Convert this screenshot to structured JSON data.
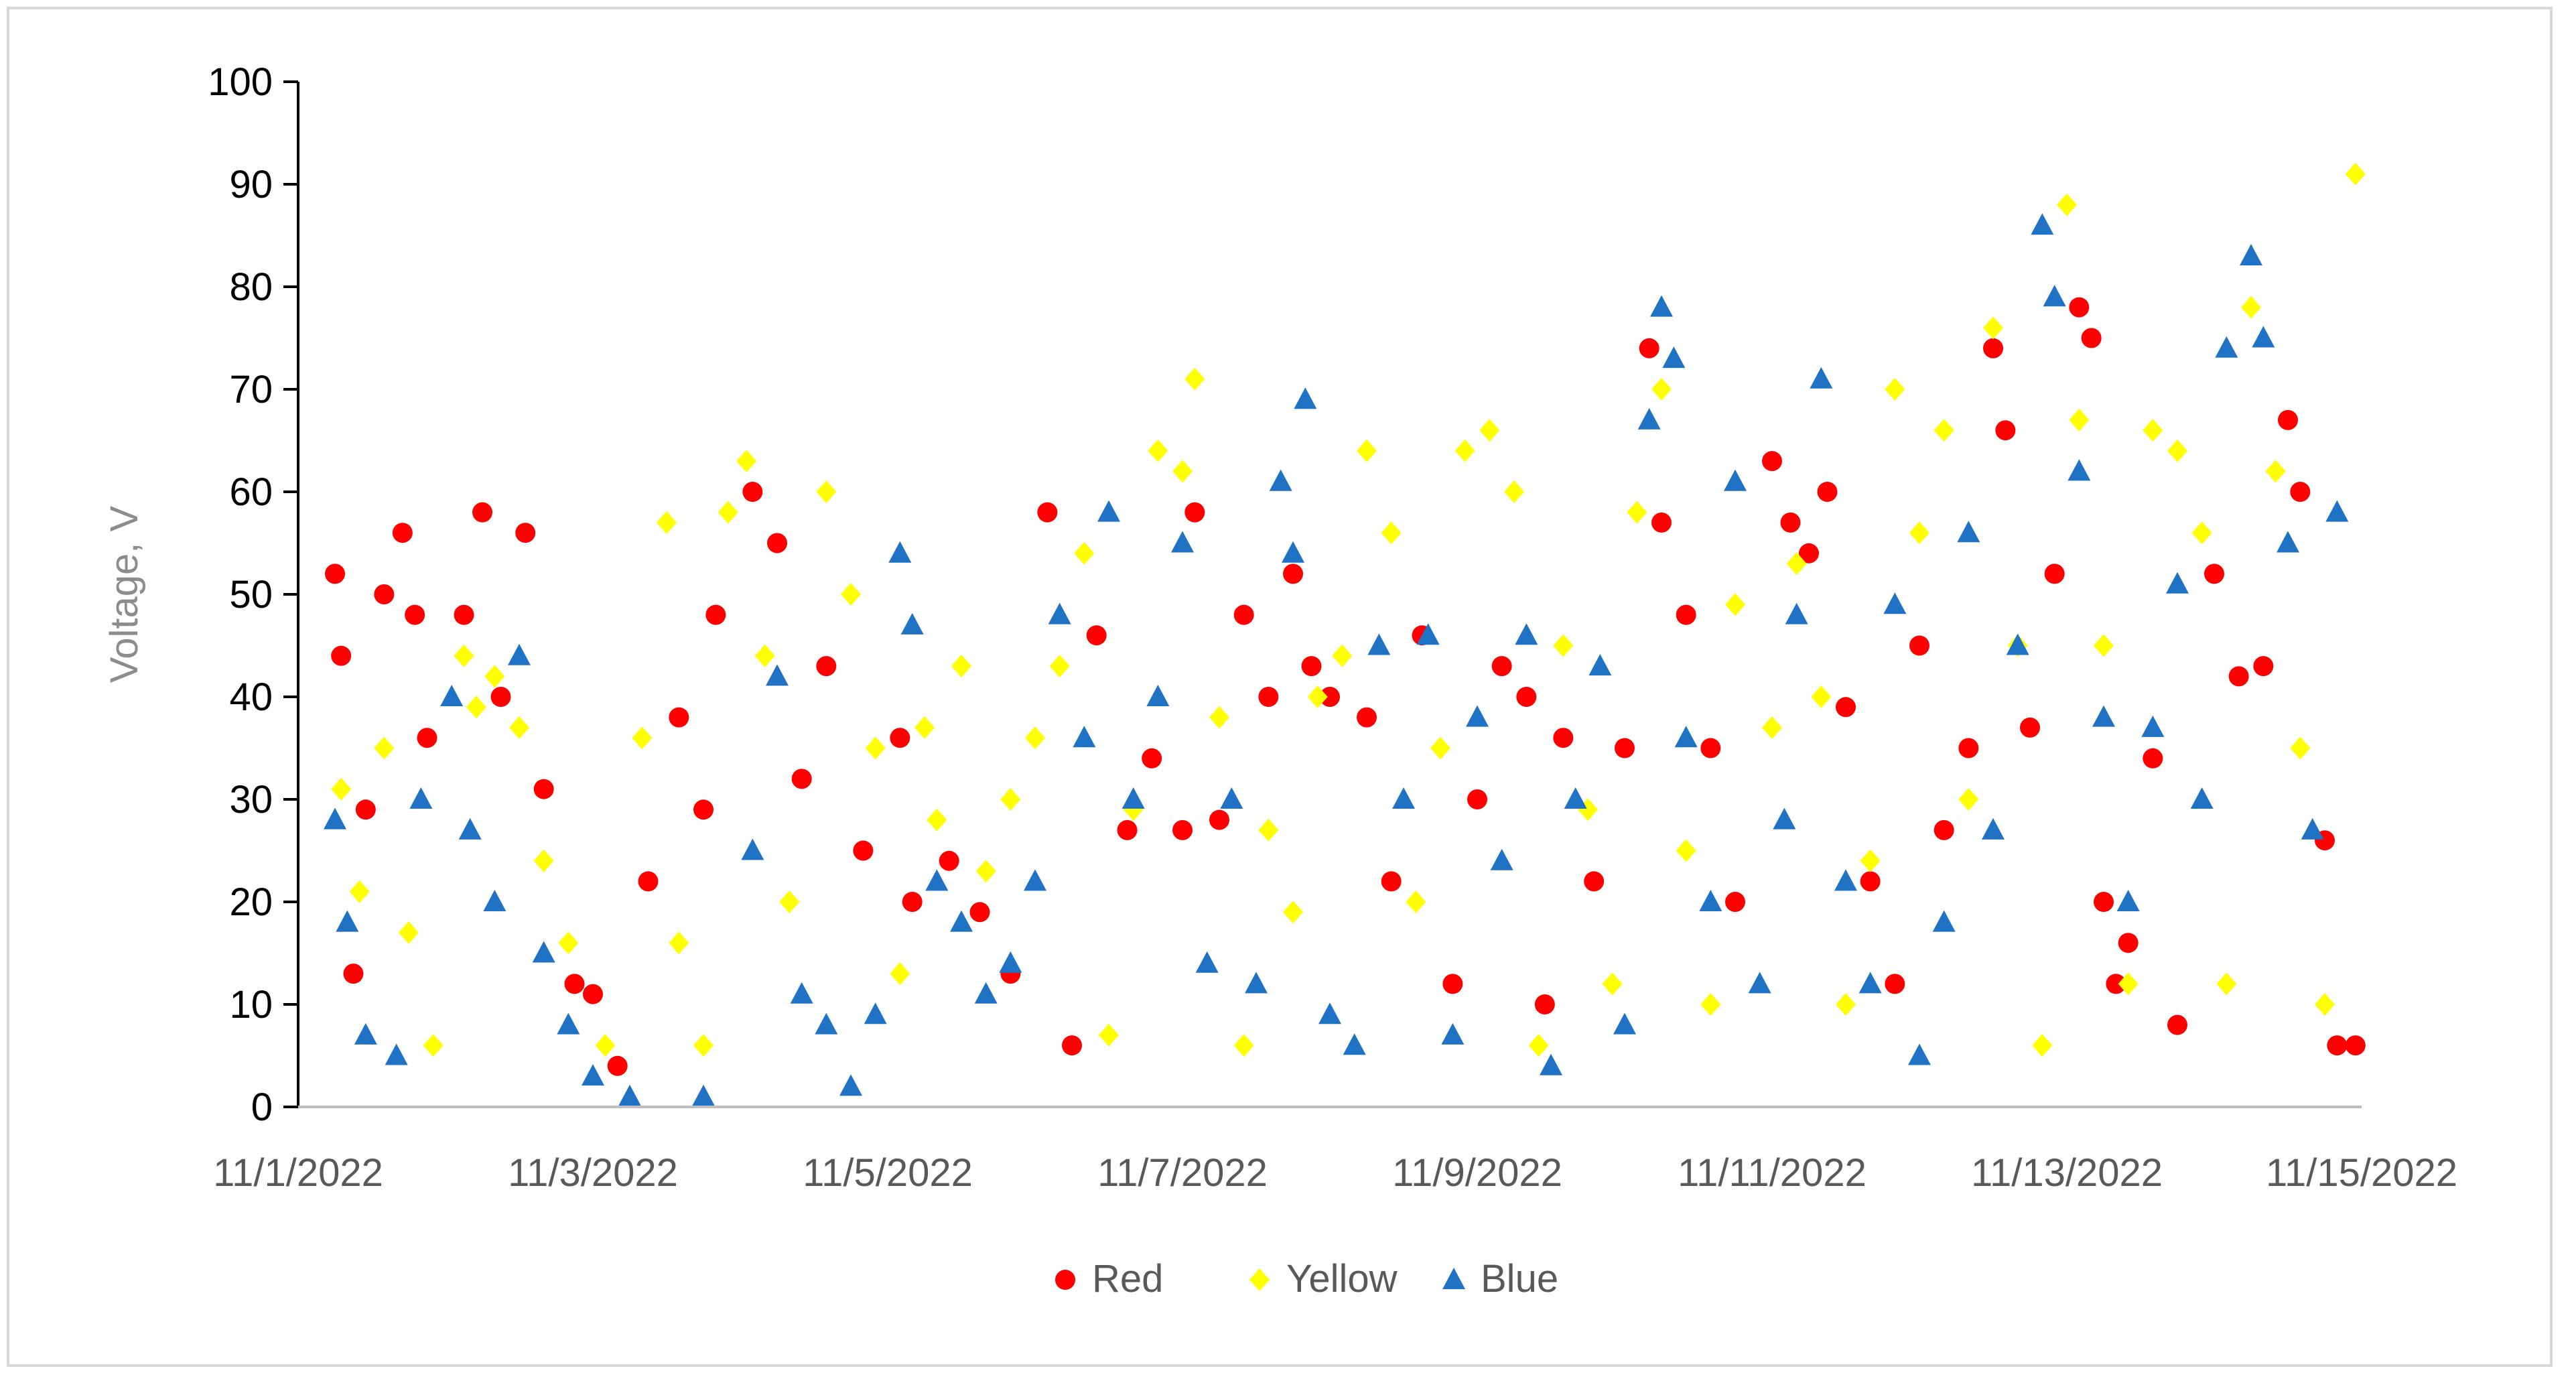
{
  "chart_data": {
    "type": "scatter",
    "title": "",
    "xlabel": "",
    "ylabel": "Voltage, V",
    "ylim": [
      0,
      100
    ],
    "y_ticks": [
      "0",
      "10",
      "20",
      "30",
      "40",
      "50",
      "60",
      "70",
      "80",
      "90",
      "100"
    ],
    "xlim": [
      "11/1/2022",
      "11/15/2022"
    ],
    "x_ticks": [
      "11/1/2022",
      "11/3/2022",
      "11/5/2022",
      "11/7/2022",
      "11/9/2022",
      "11/11/2022",
      "11/13/2022",
      "11/15/2022"
    ],
    "grid": false,
    "legend_position": "bottom",
    "series": [
      {
        "name": "Red",
        "marker": "circle",
        "color": "#ff0000",
        "points": [
          [
            "11/1/2022 06:00",
            52
          ],
          [
            "11/1/2022 07:00",
            44
          ],
          [
            "11/1/2022 09:00",
            13
          ],
          [
            "11/1/2022 11:00",
            29
          ],
          [
            "11/1/2022 14:00",
            50
          ],
          [
            "11/1/2022 17:00",
            56
          ],
          [
            "11/1/2022 19:00",
            48
          ],
          [
            "11/1/2022 21:00",
            36
          ],
          [
            "11/2/2022 03:00",
            48
          ],
          [
            "11/2/2022 06:00",
            58
          ],
          [
            "11/2/2022 09:00",
            40
          ],
          [
            "11/2/2022 13:00",
            56
          ],
          [
            "11/2/2022 16:00",
            31
          ],
          [
            "11/2/2022 21:00",
            12
          ],
          [
            "11/3/2022 00:00",
            11
          ],
          [
            "11/3/2022 04:00",
            4
          ],
          [
            "11/3/2022 09:00",
            22
          ],
          [
            "11/3/2022 14:00",
            38
          ],
          [
            "11/3/2022 18:00",
            29
          ],
          [
            "11/3/2022 20:00",
            48
          ],
          [
            "11/4/2022 02:00",
            60
          ],
          [
            "11/4/2022 06:00",
            55
          ],
          [
            "11/4/2022 10:00",
            32
          ],
          [
            "11/4/2022 14:00",
            43
          ],
          [
            "11/4/2022 20:00",
            25
          ],
          [
            "11/5/2022 02:00",
            36
          ],
          [
            "11/5/2022 04:00",
            20
          ],
          [
            "11/5/2022 10:00",
            24
          ],
          [
            "11/5/2022 15:00",
            19
          ],
          [
            "11/5/2022 20:00",
            13
          ],
          [
            "11/6/2022 02:00",
            58
          ],
          [
            "11/6/2022 06:00",
            6
          ],
          [
            "11/6/2022 10:00",
            46
          ],
          [
            "11/6/2022 15:00",
            27
          ],
          [
            "11/6/2022 19:00",
            34
          ],
          [
            "11/7/2022 00:00",
            27
          ],
          [
            "11/7/2022 02:00",
            58
          ],
          [
            "11/7/2022 06:00",
            28
          ],
          [
            "11/7/2022 10:00",
            48
          ],
          [
            "11/7/2022 14:00",
            40
          ],
          [
            "11/7/2022 18:00",
            52
          ],
          [
            "11/7/2022 21:00",
            43
          ],
          [
            "11/8/2022 00:00",
            40
          ],
          [
            "11/8/2022 06:00",
            38
          ],
          [
            "11/8/2022 10:00",
            22
          ],
          [
            "11/8/2022 15:00",
            46
          ],
          [
            "11/8/2022 20:00",
            12
          ],
          [
            "11/9/2022 00:00",
            30
          ],
          [
            "11/9/2022 04:00",
            43
          ],
          [
            "11/9/2022 08:00",
            40
          ],
          [
            "11/9/2022 11:00",
            10
          ],
          [
            "11/9/2022 14:00",
            36
          ],
          [
            "11/9/2022 19:00",
            22
          ],
          [
            "11/10/2022 00:00",
            35
          ],
          [
            "11/10/2022 04:00",
            74
          ],
          [
            "11/10/2022 06:00",
            57
          ],
          [
            "11/10/2022 10:00",
            48
          ],
          [
            "11/10/2022 14:00",
            35
          ],
          [
            "11/10/2022 18:00",
            20
          ],
          [
            "11/11/2022 00:00",
            63
          ],
          [
            "11/11/2022 03:00",
            57
          ],
          [
            "11/11/2022 06:00",
            54
          ],
          [
            "11/11/2022 09:00",
            60
          ],
          [
            "11/11/2022 12:00",
            39
          ],
          [
            "11/11/2022 16:00",
            22
          ],
          [
            "11/11/2022 20:00",
            12
          ],
          [
            "11/12/2022 00:00",
            45
          ],
          [
            "11/12/2022 04:00",
            27
          ],
          [
            "11/12/2022 08:00",
            35
          ],
          [
            "11/12/2022 12:00",
            74
          ],
          [
            "11/12/2022 14:00",
            66
          ],
          [
            "11/12/2022 18:00",
            37
          ],
          [
            "11/12/2022 22:00",
            52
          ],
          [
            "11/13/2022 02:00",
            78
          ],
          [
            "11/13/2022 04:00",
            75
          ],
          [
            "11/13/2022 06:00",
            20
          ],
          [
            "11/13/2022 08:00",
            12
          ],
          [
            "11/13/2022 10:00",
            16
          ],
          [
            "11/13/2022 14:00",
            34
          ],
          [
            "11/13/2022 18:00",
            8
          ],
          [
            "11/14/2022 00:00",
            52
          ],
          [
            "11/14/2022 04:00",
            42
          ],
          [
            "11/14/2022 08:00",
            43
          ],
          [
            "11/14/2022 12:00",
            67
          ],
          [
            "11/14/2022 14:00",
            60
          ],
          [
            "11/14/2022 18:00",
            26
          ],
          [
            "11/14/2022 20:00",
            6
          ],
          [
            "11/14/2022 23:00",
            6
          ]
        ]
      },
      {
        "name": "Yellow",
        "marker": "diamond",
        "color": "#ffff00",
        "points": [
          [
            "11/1/2022 07:00",
            31
          ],
          [
            "11/1/2022 10:00",
            21
          ],
          [
            "11/1/2022 14:00",
            35
          ],
          [
            "11/1/2022 18:00",
            17
          ],
          [
            "11/1/2022 22:00",
            6
          ],
          [
            "11/2/2022 03:00",
            44
          ],
          [
            "11/2/2022 05:00",
            39
          ],
          [
            "11/2/2022 08:00",
            42
          ],
          [
            "11/2/2022 12:00",
            37
          ],
          [
            "11/2/2022 16:00",
            24
          ],
          [
            "11/2/2022 20:00",
            16
          ],
          [
            "11/3/2022 02:00",
            6
          ],
          [
            "11/3/2022 08:00",
            36
          ],
          [
            "11/3/2022 12:00",
            57
          ],
          [
            "11/3/2022 14:00",
            16
          ],
          [
            "11/3/2022 18:00",
            6
          ],
          [
            "11/3/2022 22:00",
            58
          ],
          [
            "11/4/2022 01:00",
            63
          ],
          [
            "11/4/2022 04:00",
            44
          ],
          [
            "11/4/2022 08:00",
            20
          ],
          [
            "11/4/2022 14:00",
            60
          ],
          [
            "11/4/2022 18:00",
            50
          ],
          [
            "11/4/2022 22:00",
            35
          ],
          [
            "11/5/2022 02:00",
            13
          ],
          [
            "11/5/2022 06:00",
            37
          ],
          [
            "11/5/2022 08:00",
            28
          ],
          [
            "11/5/2022 12:00",
            43
          ],
          [
            "11/5/2022 16:00",
            23
          ],
          [
            "11/5/2022 20:00",
            30
          ],
          [
            "11/6/2022 00:00",
            36
          ],
          [
            "11/6/2022 04:00",
            43
          ],
          [
            "11/6/2022 08:00",
            54
          ],
          [
            "11/6/2022 12:00",
            7
          ],
          [
            "11/6/2022 16:00",
            29
          ],
          [
            "11/6/2022 20:00",
            64
          ],
          [
            "11/7/2022 00:00",
            62
          ],
          [
            "11/7/2022 02:00",
            71
          ],
          [
            "11/7/2022 06:00",
            38
          ],
          [
            "11/7/2022 10:00",
            6
          ],
          [
            "11/7/2022 14:00",
            27
          ],
          [
            "11/7/2022 18:00",
            19
          ],
          [
            "11/7/2022 22:00",
            40
          ],
          [
            "11/8/2022 02:00",
            44
          ],
          [
            "11/8/2022 06:00",
            64
          ],
          [
            "11/8/2022 10:00",
            56
          ],
          [
            "11/8/2022 14:00",
            20
          ],
          [
            "11/8/2022 18:00",
            35
          ],
          [
            "11/8/2022 22:00",
            64
          ],
          [
            "11/9/2022 02:00",
            66
          ],
          [
            "11/9/2022 06:00",
            60
          ],
          [
            "11/9/2022 10:00",
            6
          ],
          [
            "11/9/2022 14:00",
            45
          ],
          [
            "11/9/2022 18:00",
            29
          ],
          [
            "11/9/2022 22:00",
            12
          ],
          [
            "11/10/2022 02:00",
            58
          ],
          [
            "11/10/2022 06:00",
            70
          ],
          [
            "11/10/2022 10:00",
            25
          ],
          [
            "11/10/2022 14:00",
            10
          ],
          [
            "11/10/2022 18:00",
            49
          ],
          [
            "11/11/2022 00:00",
            37
          ],
          [
            "11/11/2022 04:00",
            53
          ],
          [
            "11/11/2022 08:00",
            40
          ],
          [
            "11/11/2022 12:00",
            10
          ],
          [
            "11/11/2022 16:00",
            24
          ],
          [
            "11/11/2022 20:00",
            70
          ],
          [
            "11/12/2022 00:00",
            56
          ],
          [
            "11/12/2022 04:00",
            66
          ],
          [
            "11/12/2022 08:00",
            30
          ],
          [
            "11/12/2022 12:00",
            76
          ],
          [
            "11/12/2022 16:00",
            45
          ],
          [
            "11/12/2022 20:00",
            6
          ],
          [
            "11/13/2022 00:00",
            88
          ],
          [
            "11/13/2022 02:00",
            67
          ],
          [
            "11/13/2022 06:00",
            45
          ],
          [
            "11/13/2022 10:00",
            12
          ],
          [
            "11/13/2022 14:00",
            66
          ],
          [
            "11/13/2022 18:00",
            64
          ],
          [
            "11/13/2022 22:00",
            56
          ],
          [
            "11/14/2022 02:00",
            12
          ],
          [
            "11/14/2022 06:00",
            78
          ],
          [
            "11/14/2022 10:00",
            62
          ],
          [
            "11/14/2022 14:00",
            35
          ],
          [
            "11/14/2022 18:00",
            10
          ],
          [
            "11/14/2022 23:00",
            91
          ]
        ]
      },
      {
        "name": "Blue",
        "marker": "triangle",
        "color": "#1f72c4",
        "points": [
          [
            "11/1/2022 06:00",
            28
          ],
          [
            "11/1/2022 08:00",
            18
          ],
          [
            "11/1/2022 11:00",
            7
          ],
          [
            "11/1/2022 16:00",
            5
          ],
          [
            "11/1/2022 20:00",
            30
          ],
          [
            "11/2/2022 01:00",
            40
          ],
          [
            "11/2/2022 04:00",
            27
          ],
          [
            "11/2/2022 08:00",
            20
          ],
          [
            "11/2/2022 12:00",
            44
          ],
          [
            "11/2/2022 16:00",
            15
          ],
          [
            "11/2/2022 20:00",
            8
          ],
          [
            "11/3/2022 00:00",
            3
          ],
          [
            "11/3/2022 06:00",
            1
          ],
          [
            "11/3/2022 18:00",
            1
          ],
          [
            "11/4/2022 02:00",
            25
          ],
          [
            "11/4/2022 06:00",
            42
          ],
          [
            "11/4/2022 10:00",
            11
          ],
          [
            "11/4/2022 14:00",
            8
          ],
          [
            "11/4/2022 18:00",
            2
          ],
          [
            "11/4/2022 22:00",
            9
          ],
          [
            "11/5/2022 02:00",
            54
          ],
          [
            "11/5/2022 04:00",
            47
          ],
          [
            "11/5/2022 08:00",
            22
          ],
          [
            "11/5/2022 12:00",
            18
          ],
          [
            "11/5/2022 16:00",
            11
          ],
          [
            "11/5/2022 20:00",
            14
          ],
          [
            "11/6/2022 00:00",
            22
          ],
          [
            "11/6/2022 04:00",
            48
          ],
          [
            "11/6/2022 08:00",
            36
          ],
          [
            "11/6/2022 12:00",
            58
          ],
          [
            "11/6/2022 16:00",
            30
          ],
          [
            "11/6/2022 20:00",
            40
          ],
          [
            "11/7/2022 00:00",
            55
          ],
          [
            "11/7/2022 04:00",
            14
          ],
          [
            "11/7/2022 08:00",
            30
          ],
          [
            "11/7/2022 12:00",
            12
          ],
          [
            "11/7/2022 16:00",
            61
          ],
          [
            "11/7/2022 18:00",
            54
          ],
          [
            "11/7/2022 20:00",
            69
          ],
          [
            "11/8/2022 00:00",
            9
          ],
          [
            "11/8/2022 04:00",
            6
          ],
          [
            "11/8/2022 08:00",
            45
          ],
          [
            "11/8/2022 12:00",
            30
          ],
          [
            "11/8/2022 16:00",
            46
          ],
          [
            "11/8/2022 20:00",
            7
          ],
          [
            "11/9/2022 00:00",
            38
          ],
          [
            "11/9/2022 04:00",
            24
          ],
          [
            "11/9/2022 08:00",
            46
          ],
          [
            "11/9/2022 12:00",
            4
          ],
          [
            "11/9/2022 16:00",
            30
          ],
          [
            "11/9/2022 20:00",
            43
          ],
          [
            "11/10/2022 00:00",
            8
          ],
          [
            "11/10/2022 04:00",
            67
          ],
          [
            "11/10/2022 06:00",
            78
          ],
          [
            "11/10/2022 08:00",
            73
          ],
          [
            "11/10/2022 10:00",
            36
          ],
          [
            "11/10/2022 14:00",
            20
          ],
          [
            "11/10/2022 18:00",
            61
          ],
          [
            "11/10/2022 22:00",
            12
          ],
          [
            "11/11/2022 02:00",
            28
          ],
          [
            "11/11/2022 04:00",
            48
          ],
          [
            "11/11/2022 08:00",
            71
          ],
          [
            "11/11/2022 12:00",
            22
          ],
          [
            "11/11/2022 16:00",
            12
          ],
          [
            "11/11/2022 20:00",
            49
          ],
          [
            "11/12/2022 00:00",
            5
          ],
          [
            "11/12/2022 04:00",
            18
          ],
          [
            "11/12/2022 08:00",
            56
          ],
          [
            "11/12/2022 12:00",
            27
          ],
          [
            "11/12/2022 16:00",
            45
          ],
          [
            "11/12/2022 20:00",
            86
          ],
          [
            "11/12/2022 22:00",
            79
          ],
          [
            "11/13/2022 02:00",
            62
          ],
          [
            "11/13/2022 06:00",
            38
          ],
          [
            "11/13/2022 10:00",
            20
          ],
          [
            "11/13/2022 14:00",
            37
          ],
          [
            "11/13/2022 18:00",
            51
          ],
          [
            "11/13/2022 22:00",
            30
          ],
          [
            "11/14/2022 02:00",
            74
          ],
          [
            "11/14/2022 06:00",
            83
          ],
          [
            "11/14/2022 08:00",
            75
          ],
          [
            "11/14/2022 12:00",
            55
          ],
          [
            "11/14/2022 16:00",
            27
          ],
          [
            "11/14/2022 20:00",
            58
          ]
        ]
      }
    ]
  }
}
